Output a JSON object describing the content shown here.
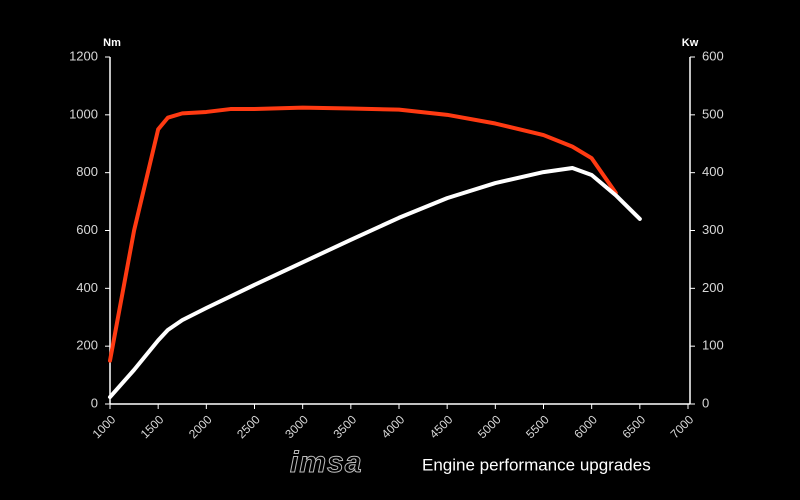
{
  "chart_data": {
    "type": "line",
    "y_label": "Nm",
    "y2_label": "Kw",
    "annotations": [
      "imsa",
      "Engine performance upgrades"
    ],
    "x": [
      1000,
      1250,
      1500,
      1600,
      1750,
      2000,
      2250,
      2500,
      3000,
      3500,
      4000,
      4500,
      5000,
      5500,
      5800,
      6000,
      6250,
      6500
    ],
    "xlim": [
      1000,
      7000
    ],
    "xticks": [
      1000,
      1500,
      2000,
      2500,
      3000,
      3500,
      4000,
      4500,
      5000,
      5500,
      6000,
      6500,
      7000
    ],
    "ylim": [
      0,
      1200
    ],
    "yticks": [
      0,
      200,
      400,
      600,
      800,
      1000,
      1200
    ],
    "y2lim": [
      0,
      600
    ],
    "y2ticks": [
      0,
      100,
      200,
      300,
      400,
      500,
      600
    ],
    "series": [
      {
        "color": "#ff3a12",
        "values": [
          150,
          600,
          950,
          990,
          1005,
          1010,
          1020,
          1020,
          1025,
          1022,
          1018,
          1000,
          970,
          930,
          890,
          850,
          730,
          null
        ]
      },
      {
        "color": "#ffffff",
        "axis": "y2",
        "values": [
          12,
          59,
          110,
          128,
          145,
          166,
          186,
          206,
          245,
          284,
          322,
          356,
          382,
          401,
          408,
          396,
          361,
          320
        ]
      }
    ]
  }
}
